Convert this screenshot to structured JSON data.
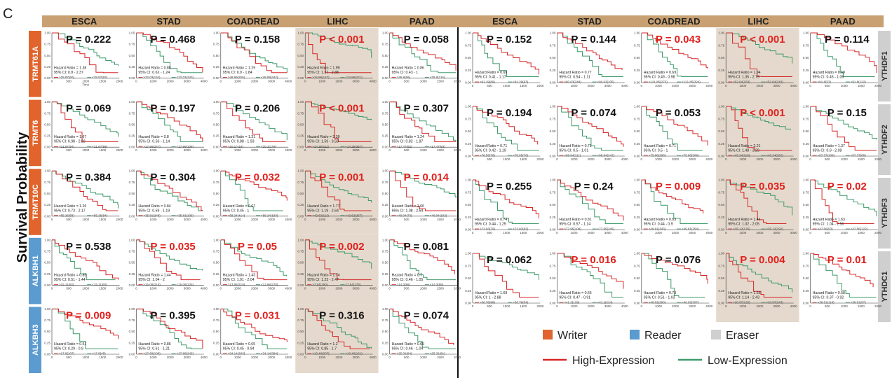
{
  "panel_label": "C",
  "y_axis_label": "Survival Probability",
  "colors": {
    "header_band": "#c8a072",
    "writer": "#e0642c",
    "reader": "#5b9bd0",
    "eraser": "#cfcfcf",
    "high_expression": "#d62728",
    "low_expression": "#3f9a6a",
    "highlight_cell": "#e4d9cc",
    "significant_p": "#e0201c",
    "nonsignificant_p": "#111111"
  },
  "legend": {
    "writer": "Writer",
    "reader": "Reader",
    "eraser": "Eraser",
    "high": "High-Expression",
    "low": "Low-Expression"
  },
  "left_cancers": [
    "ESCA",
    "STAD",
    "COADREAD",
    "LIHC",
    "PAAD"
  ],
  "right_cancers": [
    "ESCA",
    "STAD",
    "COADREAD",
    "LIHC",
    "PAAD"
  ],
  "left_genes": [
    {
      "name": "TRMT61A",
      "type": "writer"
    },
    {
      "name": "TRMT6",
      "type": "writer"
    },
    {
      "name": "TRMT10C",
      "type": "writer"
    },
    {
      "name": "ALKBH1",
      "type": "reader"
    },
    {
      "name": "ALKBH3",
      "type": "reader"
    }
  ],
  "right_genes": [
    {
      "name": "YTHDF1",
      "type": "eraser"
    },
    {
      "name": "YTHDF2",
      "type": "eraser"
    },
    {
      "name": "YTHDF3",
      "type": "eraser"
    },
    {
      "name": "YTHDC1",
      "type": "eraser"
    }
  ],
  "chart_data": {
    "type": "line",
    "title": "",
    "xlabel": "Time",
    "ylabel": "Survival Probability",
    "ylim": [
      0,
      1
    ],
    "y_ticks": [
      "1.00",
      "0.75",
      "0.50",
      "0.25",
      "0.00"
    ],
    "x_ticks_by_cancer": {
      "ESCA": [
        "0",
        "500",
        "1000",
        "1500",
        "2000"
      ],
      "STAD": [
        "0",
        "1000",
        "2000",
        "3000",
        "4000"
      ],
      "COADREAD": [
        "0",
        "1000",
        "2000",
        "3000",
        "4000"
      ],
      "LIHC": [
        "0",
        "1000",
        "2000",
        "3000",
        "4000"
      ],
      "PAAD": [
        "0",
        "500",
        "1000",
        "1500",
        "2000"
      ]
    },
    "left_p_values": [
      [
        "P = 0.222",
        "P = 0.468",
        "P = 0.158",
        "P < 0.001",
        "P = 0.058"
      ],
      [
        "P = 0.069",
        "P = 0.197",
        "P = 0.206",
        "P < 0.001",
        "P = 0.307"
      ],
      [
        "P = 0.384",
        "P = 0.304",
        "P = 0.032",
        "P = 0.001",
        "P = 0.014"
      ],
      [
        "P = 0.538",
        "P = 0.035",
        "P = 0.05",
        "P = 0.002",
        "P = 0.081"
      ],
      [
        "P = 0.009",
        "P = 0.395",
        "P = 0.031",
        "P = 0.316",
        "P = 0.074"
      ]
    ],
    "left_significant": [
      [
        false,
        false,
        false,
        true,
        false
      ],
      [
        false,
        false,
        false,
        true,
        false
      ],
      [
        false,
        false,
        true,
        true,
        true
      ],
      [
        false,
        true,
        true,
        true,
        false
      ],
      [
        true,
        false,
        true,
        false,
        false
      ]
    ],
    "left_hazard_ratios": [
      [
        "1.38",
        "0.88",
        "1.29",
        "1.99",
        "0.86"
      ],
      [
        "1.67",
        "0.8",
        "1.31",
        "2.39",
        "1.24"
      ],
      [
        "1.26",
        "0.84",
        "0.67",
        "1.77",
        "1.66"
      ],
      [
        "0.85",
        "1.44",
        "1.43",
        "1.74",
        "0.7"
      ],
      [
        "0.51",
        "0.86",
        "0.65",
        "1.2",
        "0.69"
      ]
    ],
    "left_ci": [
      [
        "0.8 - 2.37",
        "0.62 - 1.24",
        "0.9 - 1.84",
        "1.37 - 2.88",
        "0.43 - 1"
      ],
      [
        "0.98 - 2.82",
        "0.56 - 1.14",
        "0.88 - 1.93",
        "1.59 - 3.59",
        "0.82 - 1.87"
      ],
      [
        "0.73 - 2.17",
        "0.59 - 1.19",
        "0.45 - 1",
        "1.19 - 2.64",
        "1.08 - 2.54"
      ],
      [
        "0.51 - 1.44",
        "1.04 - 2",
        "1.01 - 2.04",
        "1.23 - 2.47",
        "0.46 - 1.05"
      ],
      [
        "0.29 - 0.9",
        "0.61 - 1.21",
        "0.45 - 0.94",
        "0.85 - 1.7",
        "0.46 - 1.04"
      ]
    ],
    "left_hazard_heights": [
      [
        "",
        "",
        "",
        "",
        ""
      ],
      [
        "",
        "",
        "",
        "",
        ""
      ],
      [
        "",
        "",
        "",
        "",
        ""
      ],
      [
        "",
        "",
        "",
        "",
        ""
      ],
      [
        "",
        "",
        "",
        "",
        ""
      ]
    ],
    "left_group_labels": [
      [
        [
          ">28.87(60)",
          "<28.87(92)"
        ],
        [
          ">32.03(110)",
          "<32.03(243)"
        ],
        [
          ">48.89(255)",
          "<48.89(342)"
        ],
        [
          ">24.86(147)",
          "<24.86(221)"
        ],
        [
          ">35.8(59)",
          "<35.8(116)"
        ]
      ],
      [
        [
          ">21.97(94)",
          "<21.97(58)"
        ],
        [
          ">17.66(247)",
          "<17.66(106)"
        ],
        [
          ">20.1(418)",
          "<20.1(179)"
        ],
        [
          ">14.25(111)",
          "<14.25(257)"
        ],
        [
          ">17.47(92)",
          "<17.47(83)"
        ]
      ],
      [
        [
          ">55.26(58)",
          "<55.26(94)"
        ],
        [
          ">35.81(248)",
          "<35.81(105)"
        ],
        [
          ">58.24(414)",
          "<58.24(183)"
        ],
        [
          ">42.62(111)",
          "<42.62(257)"
        ],
        [
          ">40.04(73)",
          "<40.04(102)"
        ]
      ],
      [
        [
          ">15.11(92)",
          "<15.11(60)"
        ],
        [
          ">15.08(218)",
          "<15.08(135)"
        ],
        [
          ">13.98(319)",
          "<13.98(278)"
        ],
        [
          ">7.64(190)",
          "<7.64(178)"
        ],
        [
          ">14.3(86)",
          "<14.3(89)"
        ]
      ],
      [
        [
          ">17.9(107)",
          "<17.9(45)"
        ],
        [
          ">27.69(108)",
          "<27.69(245)"
        ],
        [
          ">34.14(203)",
          "<34.14(394)"
        ],
        [
          ">13.46(207)",
          "<13.46(161)"
        ],
        [
          ">25.31(84)",
          "<25.31(91)"
        ]
      ]
    ],
    "right_p_values": [
      [
        "P = 0.152",
        "P = 0.144",
        "P = 0.043",
        "P < 0.001",
        "P = 0.114"
      ],
      [
        "P = 0.194",
        "P = 0.074",
        "P = 0.053",
        "P < 0.001",
        "P = 0.15"
      ],
      [
        "P = 0.255",
        "P = 0.24",
        "P = 0.009",
        "P = 0.035",
        "P = 0.02"
      ],
      [
        "P = 0.062",
        "P = 0.016",
        "P = 0.076",
        "P = 0.004",
        "P = 0.01"
      ]
    ],
    "right_significant": [
      [
        false,
        false,
        true,
        true,
        false
      ],
      [
        false,
        false,
        false,
        true,
        false
      ],
      [
        false,
        false,
        true,
        true,
        true
      ],
      [
        false,
        true,
        false,
        true,
        true
      ]
    ],
    "right_hazard_ratios": [
      [
        "0.69",
        "0.77",
        "0.69",
        "1.94",
        "0.69"
      ],
      [
        "0.71",
        "0.71",
        "0.71",
        "2.21",
        "1.37"
      ],
      [
        "0.74",
        "0.81",
        "0.63",
        "1.44",
        "1.63"
      ],
      [
        "1.69",
        "0.66",
        "0.73",
        "1.66",
        "0.58"
      ]
    ],
    "right_ci": [
      [
        "0.41 - 1.17",
        "0.54 - 1.11",
        "0.49 - 0.98",
        "1.35 - 2.79",
        "0.45 - 1.06"
      ],
      [
        "0.42 - 1.19",
        "0.5 - 1.01",
        "0.5 - 1",
        "1.48 - 3.29",
        "0.9 - 2.08"
      ],
      [
        "0.44 - 1.25",
        "0.57 - 1.14",
        "0.44 - 0.9",
        "1.02 - 2.05",
        "1.04 - 2.56"
      ],
      [
        "1 - 2.88",
        "0.47 - 0.91",
        "0.51 - 1.03",
        "1.14 - 2.43",
        "0.37 - 0.92"
      ]
    ],
    "right_group_labels": [
      [
        [
          ">91.29(89)",
          "<91.29(63)"
        ],
        [
          ">80.63(248)",
          "<80.63(105)"
        ],
        [
          ">121.85(273)",
          "<121.85(324)"
        ],
        [
          ">52.64(150)",
          "<52.64(218)"
        ],
        [
          ">91.8(53)",
          "<91.8(122)"
        ]
      ],
      [
        [
          ">78.55(76)",
          "<78.55(76)"
        ],
        [
          ">89.94(111)",
          "<89.94(242)"
        ],
        [
          ">75.66(288)",
          "<75.66(309)"
        ],
        [
          ">45.24(116)",
          "<45.24(252)"
        ],
        [
          ">57.37(109)",
          "<57.37(66)"
        ]
      ],
      [
        [
          ">73.93(70)",
          "<73.93(82)"
        ],
        [
          ">77.95(108)",
          "<77.95(245)"
        ],
        [
          ">49.81(343)",
          "<49.81(254)"
        ],
        [
          ">35.12(176)",
          "<35.12(192)"
        ],
        [
          ">47.56(53)",
          "<47.56(122)"
        ]
      ],
      [
        [
          ">36.76(98)",
          "<36.76(54)"
        ],
        [
          ">41.2(129)",
          "<41.2(224)"
        ],
        [
          ">40.02(290)",
          "<40.02(307)"
        ],
        [
          ">20.57(125)",
          "<20.57(243)"
        ],
        [
          ">38.51(118)",
          "<38.51(57)"
        ]
      ]
    ]
  }
}
